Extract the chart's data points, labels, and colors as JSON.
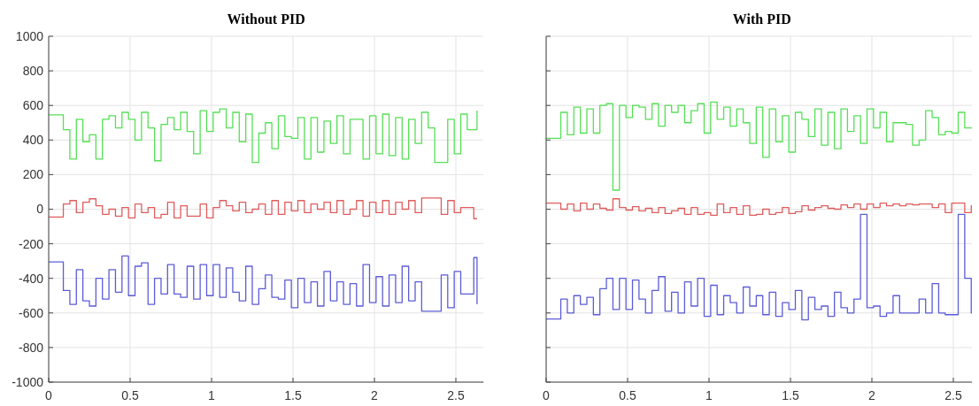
{
  "chart_data": [
    {
      "type": "step",
      "title": "Without PID",
      "xlim": [
        0,
        2.67
      ],
      "xticks": [
        0,
        0.5,
        1,
        1.5,
        2,
        2.5
      ],
      "ylim": [
        -1000,
        1000
      ],
      "yticks": [
        -1000,
        -800,
        -600,
        -400,
        -200,
        0,
        200,
        400,
        600,
        800,
        1000
      ],
      "grid": true,
      "x": [
        0,
        0.09,
        0.13,
        0.17,
        0.21,
        0.25,
        0.29,
        0.33,
        0.37,
        0.41,
        0.45,
        0.49,
        0.53,
        0.57,
        0.61,
        0.65,
        0.69,
        0.73,
        0.77,
        0.81,
        0.85,
        0.89,
        0.93,
        0.97,
        1.01,
        1.05,
        1.09,
        1.13,
        1.17,
        1.21,
        1.25,
        1.29,
        1.33,
        1.37,
        1.41,
        1.45,
        1.49,
        1.53,
        1.57,
        1.61,
        1.65,
        1.69,
        1.73,
        1.77,
        1.81,
        1.85,
        1.89,
        1.93,
        1.97,
        2.01,
        2.05,
        2.09,
        2.13,
        2.17,
        2.21,
        2.25,
        2.29,
        2.33,
        2.37,
        2.41,
        2.45,
        2.49,
        2.53,
        2.57,
        2.61,
        2.63
      ],
      "series": [
        {
          "color": "#55e055",
          "values": [
            545,
            460,
            290,
            520,
            390,
            430,
            290,
            520,
            540,
            470,
            560,
            520,
            400,
            560,
            470,
            280,
            490,
            530,
            460,
            560,
            450,
            320,
            570,
            450,
            560,
            580,
            470,
            560,
            390,
            550,
            270,
            440,
            500,
            350,
            540,
            420,
            410,
            530,
            290,
            530,
            330,
            510,
            380,
            540,
            320,
            520,
            520,
            290,
            540,
            320,
            550,
            310,
            530,
            290,
            520,
            380,
            560,
            470,
            270,
            270,
            520,
            320,
            550,
            460,
            460,
            570
          ]
        },
        {
          "color": "#e05c5c",
          "values": [
            -45,
            30,
            50,
            -20,
            40,
            60,
            20,
            -30,
            0,
            -40,
            10,
            -50,
            30,
            -20,
            10,
            -50,
            -30,
            40,
            -50,
            20,
            -40,
            -40,
            30,
            -50,
            10,
            50,
            20,
            -10,
            40,
            -20,
            0,
            30,
            -30,
            50,
            -30,
            40,
            -10,
            50,
            -20,
            30,
            0,
            40,
            -20,
            50,
            -30,
            0,
            50,
            -40,
            40,
            -20,
            50,
            -30,
            40,
            0,
            50,
            -20,
            65,
            65,
            65,
            -30,
            50,
            -20,
            10,
            10,
            -55,
            -55
          ]
        },
        {
          "color": "#5c5cd8",
          "values": [
            -305,
            -470,
            -550,
            -350,
            -530,
            -560,
            -400,
            -520,
            -350,
            -480,
            -270,
            -500,
            -330,
            -310,
            -550,
            -400,
            -490,
            -320,
            -490,
            -510,
            -330,
            -520,
            -320,
            -500,
            -320,
            -510,
            -340,
            -480,
            -530,
            -330,
            -550,
            -460,
            -380,
            -510,
            -520,
            -410,
            -570,
            -400,
            -540,
            -420,
            -560,
            -360,
            -530,
            -420,
            -550,
            -430,
            -560,
            -320,
            -540,
            -390,
            -560,
            -380,
            -540,
            -330,
            -530,
            -420,
            -590,
            -590,
            -590,
            -380,
            -570,
            -360,
            -490,
            -490,
            -280,
            -550
          ]
        }
      ]
    },
    {
      "type": "step",
      "title": "With PID",
      "xlim": [
        0,
        2.65
      ],
      "xticks": [
        0,
        0.5,
        1,
        1.5,
        2,
        2.5
      ],
      "ylim": [
        -1000,
        1000
      ],
      "yticks": [
        -1000,
        -800,
        -600,
        -400,
        -200,
        0,
        200,
        400,
        600,
        800,
        1000
      ],
      "tick_labels": "x",
      "grid": true,
      "x": [
        0,
        0.09,
        0.13,
        0.17,
        0.21,
        0.25,
        0.29,
        0.33,
        0.37,
        0.41,
        0.45,
        0.49,
        0.53,
        0.57,
        0.61,
        0.65,
        0.69,
        0.73,
        0.77,
        0.81,
        0.85,
        0.89,
        0.93,
        0.97,
        1.01,
        1.05,
        1.09,
        1.13,
        1.17,
        1.21,
        1.25,
        1.29,
        1.33,
        1.37,
        1.41,
        1.45,
        1.49,
        1.53,
        1.57,
        1.61,
        1.65,
        1.69,
        1.73,
        1.77,
        1.81,
        1.85,
        1.89,
        1.93,
        1.97,
        2.01,
        2.05,
        2.09,
        2.13,
        2.17,
        2.21,
        2.25,
        2.29,
        2.33,
        2.37,
        2.41,
        2.45,
        2.49,
        2.53,
        2.57,
        2.61,
        2.63
      ],
      "series": [
        {
          "color": "#55e055",
          "values": [
            410,
            560,
            430,
            590,
            440,
            580,
            440,
            600,
            610,
            110,
            600,
            530,
            600,
            590,
            520,
            610,
            480,
            600,
            560,
            600,
            500,
            570,
            610,
            440,
            620,
            520,
            590,
            480,
            580,
            500,
            380,
            590,
            300,
            580,
            390,
            540,
            330,
            560,
            520,
            420,
            580,
            370,
            560,
            350,
            580,
            450,
            540,
            380,
            580,
            470,
            560,
            390,
            500,
            500,
            490,
            370,
            400,
            570,
            530,
            430,
            450,
            440,
            560,
            470,
            470,
            480
          ]
        },
        {
          "color": "#e05c5c",
          "values": [
            35,
            0,
            30,
            -10,
            35,
            0,
            30,
            5,
            -5,
            60,
            10,
            -5,
            15,
            -10,
            5,
            -20,
            10,
            -25,
            -10,
            5,
            -30,
            10,
            -30,
            -20,
            -35,
            30,
            -20,
            10,
            -30,
            20,
            -35,
            -30,
            0,
            -30,
            -20,
            10,
            -25,
            -15,
            20,
            -5,
            10,
            20,
            5,
            0,
            25,
            10,
            30,
            0,
            30,
            10,
            35,
            20,
            30,
            20,
            30,
            25,
            30,
            30,
            10,
            30,
            -20,
            35,
            35,
            -20,
            20,
            20
          ]
        },
        {
          "color": "#5c5cd8",
          "values": [
            -635,
            -520,
            -600,
            -500,
            -550,
            -510,
            -610,
            -460,
            -400,
            -580,
            -400,
            -580,
            -410,
            -520,
            -600,
            -470,
            -390,
            -590,
            -480,
            -600,
            -420,
            -560,
            -400,
            -620,
            -440,
            -610,
            -500,
            -540,
            -600,
            -450,
            -560,
            -500,
            -610,
            -480,
            -620,
            -540,
            -580,
            -470,
            -640,
            -510,
            -580,
            -560,
            -620,
            -480,
            -570,
            -600,
            -520,
            -30,
            -570,
            -560,
            -620,
            -600,
            -500,
            -600,
            -600,
            -600,
            -520,
            -600,
            -430,
            -600,
            -610,
            -610,
            -30,
            -400,
            -600,
            -520
          ]
        }
      ]
    }
  ]
}
